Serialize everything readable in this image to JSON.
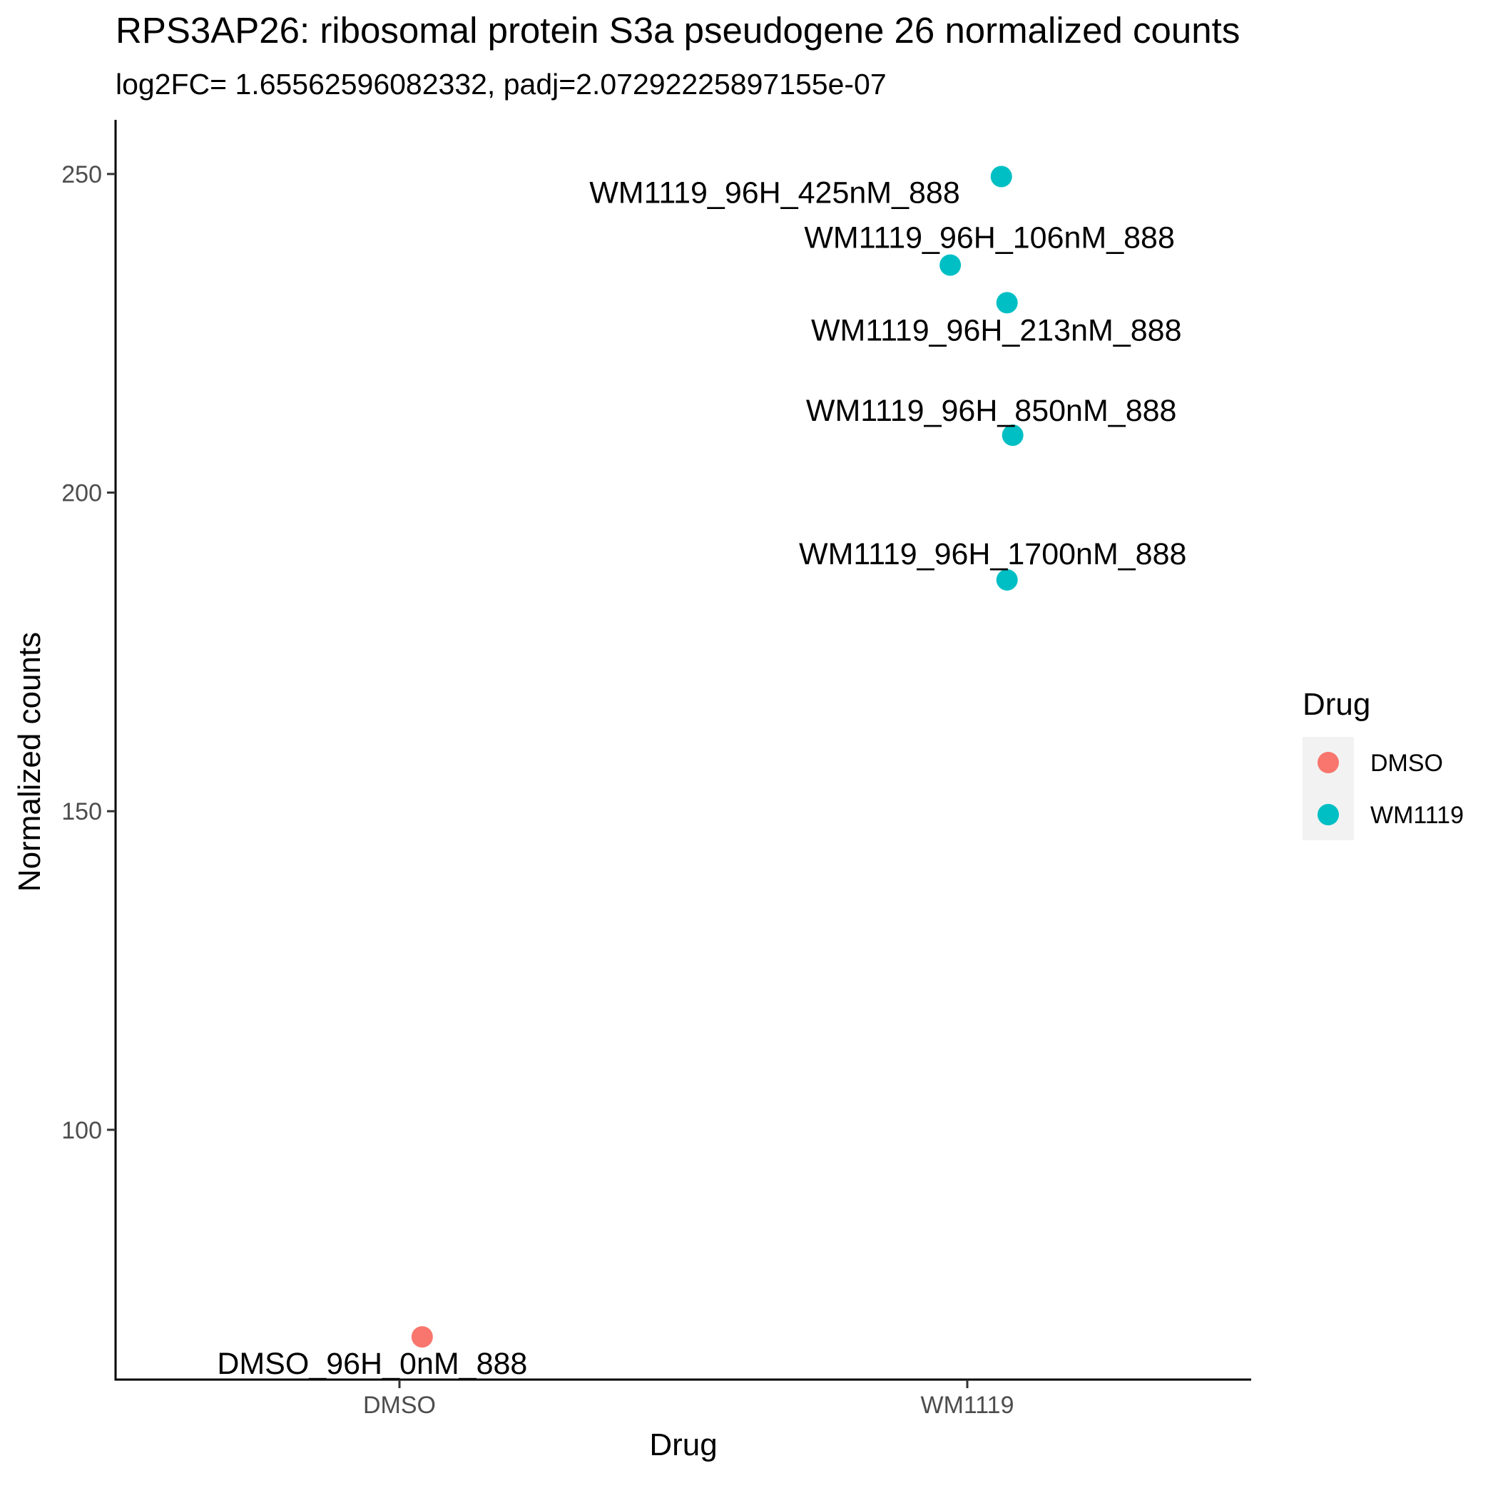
{
  "chart_data": {
    "type": "scatter",
    "title": "RPS3AP26: ribosomal protein S3a pseudogene 26 normalized counts",
    "subtitle": "log2FC= 1.65562596082332, padj=2.07292225897155e-07",
    "xlabel": "Drug",
    "ylabel": "Normalized counts",
    "categories": [
      "DMSO",
      "WM1119"
    ],
    "y_ticks": [
      100,
      150,
      200,
      250
    ],
    "ylim": [
      60.8,
      258.5
    ],
    "grid": false,
    "legend": {
      "title": "Drug",
      "position": "right",
      "entries": [
        {
          "label": "DMSO",
          "color": "#F8766D"
        },
        {
          "label": "WM1119",
          "color": "#00BFC4"
        }
      ]
    },
    "points": [
      {
        "sample": "DMSO_96H_0nM_888",
        "group": "DMSO",
        "x_jitter": 0.04,
        "y": 67.5
      },
      {
        "sample": "WM1119_96H_425nM_888",
        "group": "WM1119",
        "x_jitter": 0.06,
        "y": 249.6
      },
      {
        "sample": "WM1119_96H_106nM_888",
        "group": "WM1119",
        "x_jitter": -0.03,
        "y": 235.7
      },
      {
        "sample": "WM1119_96H_213nM_888",
        "group": "WM1119",
        "x_jitter": 0.07,
        "y": 229.8
      },
      {
        "sample": "WM1119_96H_850nM_888",
        "group": "WM1119",
        "x_jitter": 0.08,
        "y": 209.0
      },
      {
        "sample": "WM1119_96H_1700nM_888",
        "group": "WM1119",
        "x_jitter": 0.07,
        "y": 186.3
      }
    ]
  }
}
